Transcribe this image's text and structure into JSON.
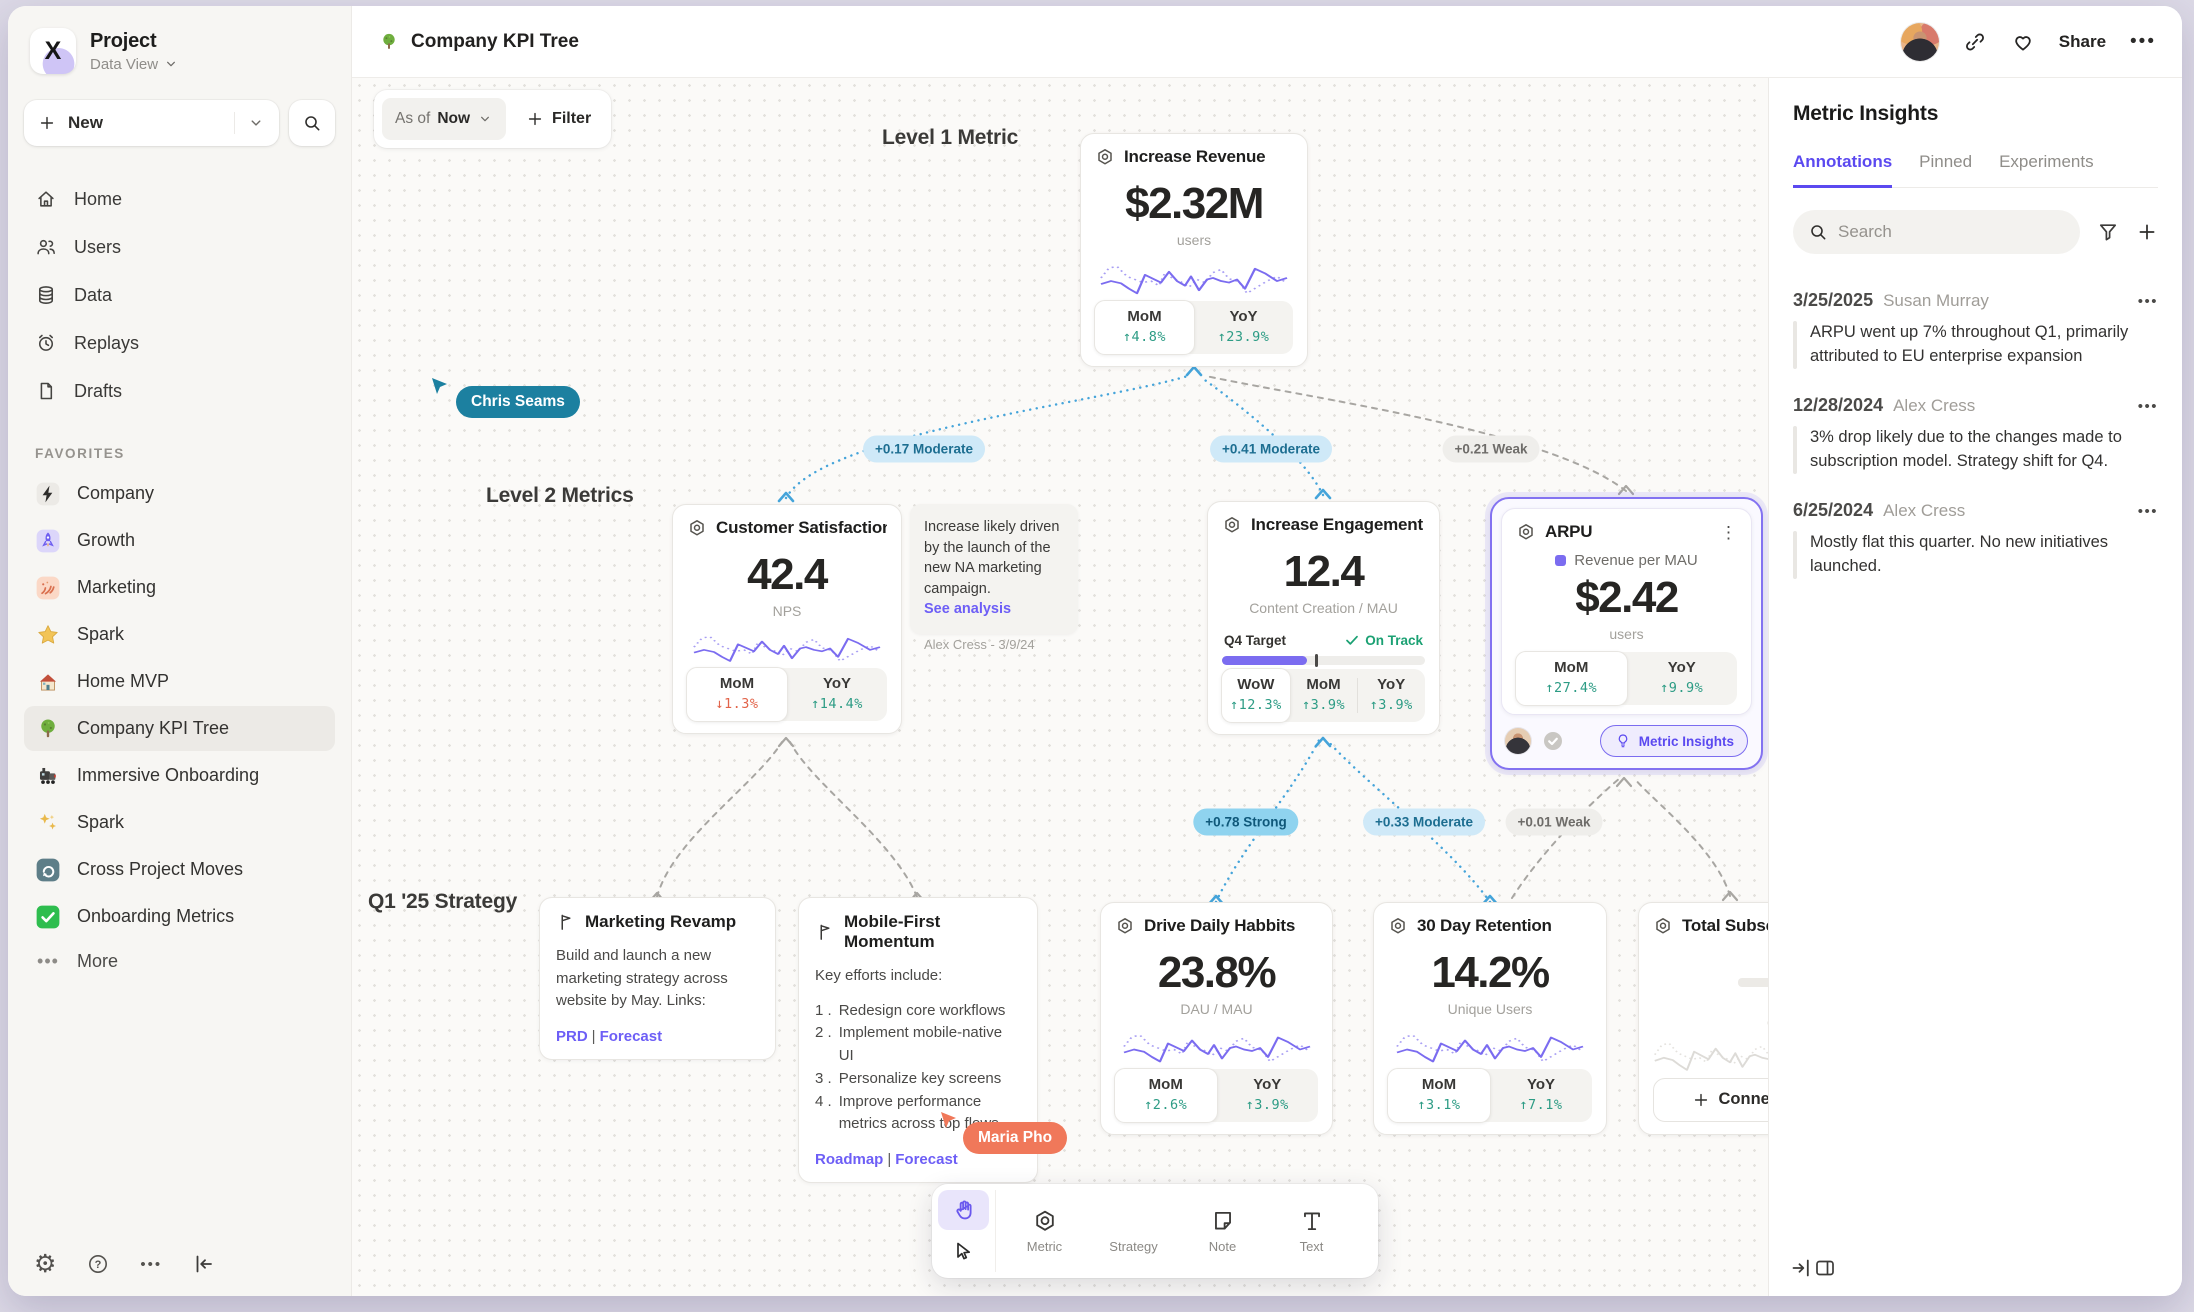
{
  "sidebar": {
    "project": {
      "name": "Project",
      "view": "Data View"
    },
    "new_label": "New",
    "nav": [
      {
        "icon": "home",
        "label": "Home"
      },
      {
        "icon": "users",
        "label": "Users"
      },
      {
        "icon": "data",
        "label": "Data"
      },
      {
        "icon": "replays",
        "label": "Replays"
      },
      {
        "icon": "drafts",
        "label": "Drafts"
      }
    ],
    "favorites_label": "FAVORITES",
    "favorites": [
      {
        "icon": "bolt",
        "label": "Company"
      },
      {
        "icon": "rocket",
        "label": "Growth"
      },
      {
        "icon": "paint",
        "label": "Marketing"
      },
      {
        "icon": "star",
        "label": "Spark"
      },
      {
        "icon": "house",
        "label": "Home MVP"
      },
      {
        "icon": "tree",
        "label": "Company KPI Tree",
        "selected": true
      },
      {
        "icon": "train",
        "label": "Immersive Onboarding"
      },
      {
        "icon": "sparkles",
        "label": "Spark"
      },
      {
        "icon": "move",
        "label": "Cross Project Moves"
      },
      {
        "icon": "checkgreen",
        "label": "Onboarding Metrics"
      }
    ],
    "more_label": "More"
  },
  "topbar": {
    "title": "Company KPI Tree",
    "share_label": "Share"
  },
  "canvas": {
    "asof_prefix": "As of",
    "asof_value": "Now",
    "filter_label": "Filter",
    "levels": {
      "l1": "Level 1 Metric",
      "l2": "Level 2 Metrics",
      "l3": "Q1 '25 Strategy"
    },
    "cursors": [
      {
        "name": "Chris Seams"
      },
      {
        "name": "Maria Pho"
      }
    ],
    "note": {
      "text": "Increase likely driven by the launch of the new NA marketing campaign.",
      "link": "See analysis",
      "author": "Alex Cress - 3/9/24"
    },
    "edges": [
      {
        "label": "+0.17 Moderate",
        "strength": "moderate"
      },
      {
        "label": "+0.41 Moderate",
        "strength": "moderate"
      },
      {
        "label": "+0.21 Weak",
        "strength": "weak"
      },
      {
        "label": "+0.78 Strong",
        "strength": "strong"
      },
      {
        "label": "+0.33 Moderate",
        "strength": "moderate"
      },
      {
        "label": "+0.01 Weak",
        "strength": "weak"
      }
    ],
    "metric_cards": [
      {
        "id": "increase-revenue",
        "title": "Increase Revenue",
        "value": "$2.32M",
        "unit": "users",
        "stats": [
          {
            "label": "MoM",
            "dir": "up",
            "value": "4.8%",
            "highlight": true
          },
          {
            "label": "YoY",
            "dir": "up",
            "value": "23.9%"
          }
        ]
      },
      {
        "id": "customer-satisfaction",
        "title": "Customer Satisfaction",
        "value": "42.4",
        "unit": "NPS",
        "stats": [
          {
            "label": "MoM",
            "dir": "down",
            "value": "1.3%",
            "highlight": true
          },
          {
            "label": "YoY",
            "dir": "up",
            "value": "14.4%"
          }
        ]
      },
      {
        "id": "increase-engagement",
        "title": "Increase Engagement",
        "value": "12.4",
        "unit": "Content Creation / MAU",
        "target": {
          "label": "Q4 Target",
          "status": "On Track"
        },
        "stats": [
          {
            "label": "WoW",
            "dir": "up",
            "value": "12.3%",
            "highlight": true
          },
          {
            "label": "MoM",
            "dir": "up",
            "value": "3.9%"
          },
          {
            "label": "YoY",
            "dir": "up",
            "value": "3.9%"
          }
        ]
      },
      {
        "id": "arpu",
        "title": "ARPU",
        "legend": "Revenue per MAU",
        "value": "$2.42",
        "unit": "users",
        "selected": true,
        "badge": "Metric Insights",
        "stats": [
          {
            "label": "MoM",
            "dir": "up",
            "value": "27.4%",
            "highlight": true
          },
          {
            "label": "YoY",
            "dir": "up",
            "value": "9.9%"
          }
        ]
      },
      {
        "id": "drive-daily-habbits",
        "title": "Drive Daily Habbits",
        "value": "23.8%",
        "unit": "DAU / MAU",
        "stats": [
          {
            "label": "MoM",
            "dir": "up",
            "value": "2.6%",
            "highlight": true
          },
          {
            "label": "YoY",
            "dir": "up",
            "value": "3.9%"
          }
        ]
      },
      {
        "id": "thirty-day-retention",
        "title": "30 Day Retention",
        "value": "14.2%",
        "unit": "Unique Users",
        "stats": [
          {
            "label": "MoM",
            "dir": "up",
            "value": "3.1%",
            "highlight": true
          },
          {
            "label": "YoY",
            "dir": "up",
            "value": "7.1%"
          }
        ]
      },
      {
        "id": "total-subscriptions",
        "title": "Total Subscriptions",
        "empty": true,
        "connect_label": "Connect"
      }
    ],
    "strategy_cards": [
      {
        "title": "Marketing Revamp",
        "body": "Build and launch a new marketing strategy across website by May. Links:",
        "links": [
          "PRD",
          "Forecast"
        ]
      },
      {
        "title": "Mobile-First Momentum",
        "intro": "Key efforts include:",
        "items": [
          "Redesign core workflows",
          "Implement mobile-native UI",
          "Personalize key screens",
          "Improve performance metrics across top flows"
        ],
        "links": [
          "Roadmap",
          "Forecast"
        ]
      }
    ],
    "toolbar": {
      "tools": [
        {
          "id": "hand",
          "selected": true
        },
        {
          "id": "select"
        },
        {
          "id": "metric",
          "label": "Metric"
        },
        {
          "id": "strategy",
          "label": "Strategy"
        },
        {
          "id": "note",
          "label": "Note"
        },
        {
          "id": "text",
          "label": "Text"
        }
      ]
    }
  },
  "right_panel": {
    "title": "Metric Insights",
    "tabs": [
      {
        "label": "Annotations",
        "active": true
      },
      {
        "label": "Pinned"
      },
      {
        "label": "Experiments"
      }
    ],
    "search_placeholder": "Search",
    "annotations": [
      {
        "date": "3/25/2025",
        "author": "Susan Murray",
        "text": "ARPU went up 7% throughout Q1, primarily attributed to EU enterprise expansion"
      },
      {
        "date": "12/28/2024",
        "author": "Alex Cress",
        "text": "3% drop likely due to the changes made to subscription model. Strategy shift for Q4."
      },
      {
        "date": "6/25/2024",
        "author": "Alex Cress",
        "text": "Mostly flat this quarter. No new initiatives launched."
      }
    ]
  }
}
